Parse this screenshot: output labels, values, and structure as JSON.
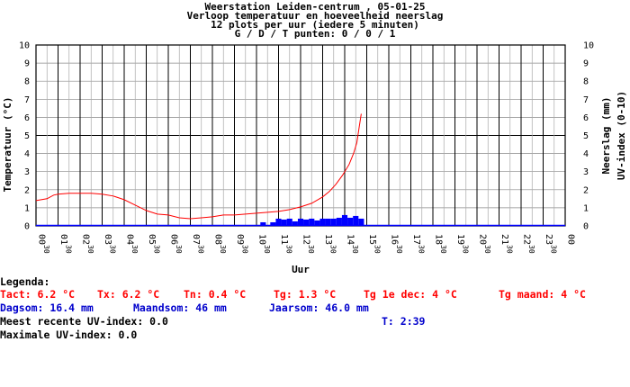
{
  "chart_data": {
    "type": "line",
    "title_lines": [
      "Weerstation Leiden-centrum , 05-01-25",
      "Verloop temperatuur en hoeveelheid neerslag",
      "12 plots per uur (iedere 5 minuten)",
      "G / D / T punten: 0 / 0 / 1"
    ],
    "xlabel": "Uur",
    "ylabel_left": "Temperatuur (°C)",
    "ylabel_right_1": "Neerslag (mm)",
    "ylabel_right_2": "UV-index (0-10)",
    "ylim": [
      0,
      10
    ],
    "yticks": [
      "0",
      "1",
      "2",
      "3",
      "4",
      "5",
      "6",
      "7",
      "8",
      "9",
      "10"
    ],
    "x_hours": [
      "00",
      "01",
      "02",
      "03",
      "04",
      "05",
      "06",
      "07",
      "08",
      "09",
      "10",
      "11",
      "12",
      "13",
      "14",
      "15",
      "16",
      "17",
      "18",
      "19",
      "20",
      "21",
      "22",
      "23",
      "00"
    ],
    "x_half_label": "30",
    "grid": true,
    "colors": {
      "temperature": "#ff0000",
      "precipitation": "#0000ff",
      "uv": "#0000ff",
      "frame": "#000000",
      "grid": "#888888"
    },
    "series": [
      {
        "key": "temperature",
        "x_hours": [
          0,
          0.5,
          0.8,
          1.0,
          1.5,
          2.0,
          2.5,
          3.0,
          3.5,
          4.0,
          4.5,
          5.0,
          5.5,
          6.0,
          6.5,
          7.0,
          7.5,
          8.0,
          8.5,
          9.0,
          9.5,
          10.0,
          10.5,
          11.0,
          11.5,
          12.0,
          12.5,
          13.0,
          13.3,
          13.6,
          13.9,
          14.2,
          14.4,
          14.55,
          14.65,
          14.75
        ],
        "y": [
          1.4,
          1.5,
          1.7,
          1.75,
          1.8,
          1.8,
          1.8,
          1.75,
          1.65,
          1.45,
          1.15,
          0.85,
          0.65,
          0.6,
          0.45,
          0.4,
          0.45,
          0.5,
          0.6,
          0.6,
          0.65,
          0.7,
          0.75,
          0.8,
          0.9,
          1.05,
          1.25,
          1.6,
          1.9,
          2.3,
          2.8,
          3.4,
          4.0,
          4.6,
          5.4,
          6.2
        ]
      },
      {
        "key": "precipitation",
        "x_hours": [
          10.3,
          10.75,
          11.0,
          11.25,
          11.5,
          11.75,
          12.0,
          12.25,
          12.5,
          12.75,
          13.0,
          13.25,
          13.5,
          13.75,
          14.0,
          14.25,
          14.5,
          14.75
        ],
        "y": [
          0.2,
          0.2,
          0.4,
          0.35,
          0.4,
          0.25,
          0.4,
          0.35,
          0.4,
          0.3,
          0.4,
          0.4,
          0.4,
          0.45,
          0.6,
          0.45,
          0.55,
          0.4
        ]
      }
    ]
  },
  "legend": {
    "title": "Legenda:",
    "tact": "Tact: 6.2 °C",
    "tx": "Tx: 6.2 °C",
    "tn": "Tn: 0.4 °C",
    "tg": "Tg: 1.3 °C",
    "tg_dec": "Tg 1e dec: 4 °C",
    "tg_maand": "Tg maand: 4 °C",
    "dagsom": "Dagsom: 16.4 mm",
    "maandsom": "Maandsom: 46 mm",
    "jaarsom": "Jaarsom: 46.0 mm",
    "uv_recent": "Meest recente UV-index: 0.0",
    "time": "T: 2:39",
    "uv_max": "Maximale UV-index: 0.0"
  }
}
